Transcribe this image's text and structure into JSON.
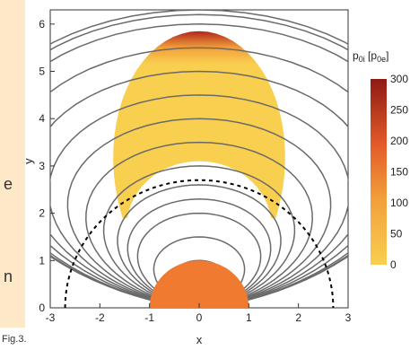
{
  "side_text": [
    "e",
    "n"
  ],
  "figure_label": "Fig.3.",
  "colors": {
    "orange_body": "#f07a30",
    "yellow_fill": "#f9cf50",
    "red_top": "#b0261a",
    "field_lines": "#6a6a6a",
    "dashed_circle": "#000000",
    "panel_bg": "#fde9c8"
  },
  "chart_data": {
    "type": "heatmap",
    "xlabel": "x",
    "ylabel": "y",
    "xlim": [
      -3,
      3
    ],
    "ylim": [
      0,
      6.3
    ],
    "x_ticks": [
      "-3",
      "-2",
      "-1",
      "0",
      "1",
      "2",
      "3"
    ],
    "y_ticks": [
      "0",
      "1",
      "2",
      "3",
      "4",
      "5",
      "6"
    ],
    "colorbar": {
      "title_main": "p",
      "title_sub": "0i",
      "title_bracket_main": "p",
      "title_bracket_sub": "0e",
      "range": [
        0,
        300
      ],
      "ticks": [
        "0",
        "50",
        "100",
        "150",
        "200",
        "250",
        "300"
      ]
    },
    "planet_radius": 1.0,
    "dashed_circle_radius": 2.7,
    "field_line_apex_heights": [
      1.0,
      1.5,
      2.0,
      2.3,
      2.6,
      3.0,
      3.5,
      4.0,
      4.5,
      5.0,
      5.5,
      6.0,
      6.2,
      6.3
    ],
    "filled_region": {
      "outer_apex": 5.85,
      "inner_apex": 3.1,
      "outer_width": 2.25,
      "inner_width": 1.9,
      "lower_limit_y": 1.9
    }
  }
}
